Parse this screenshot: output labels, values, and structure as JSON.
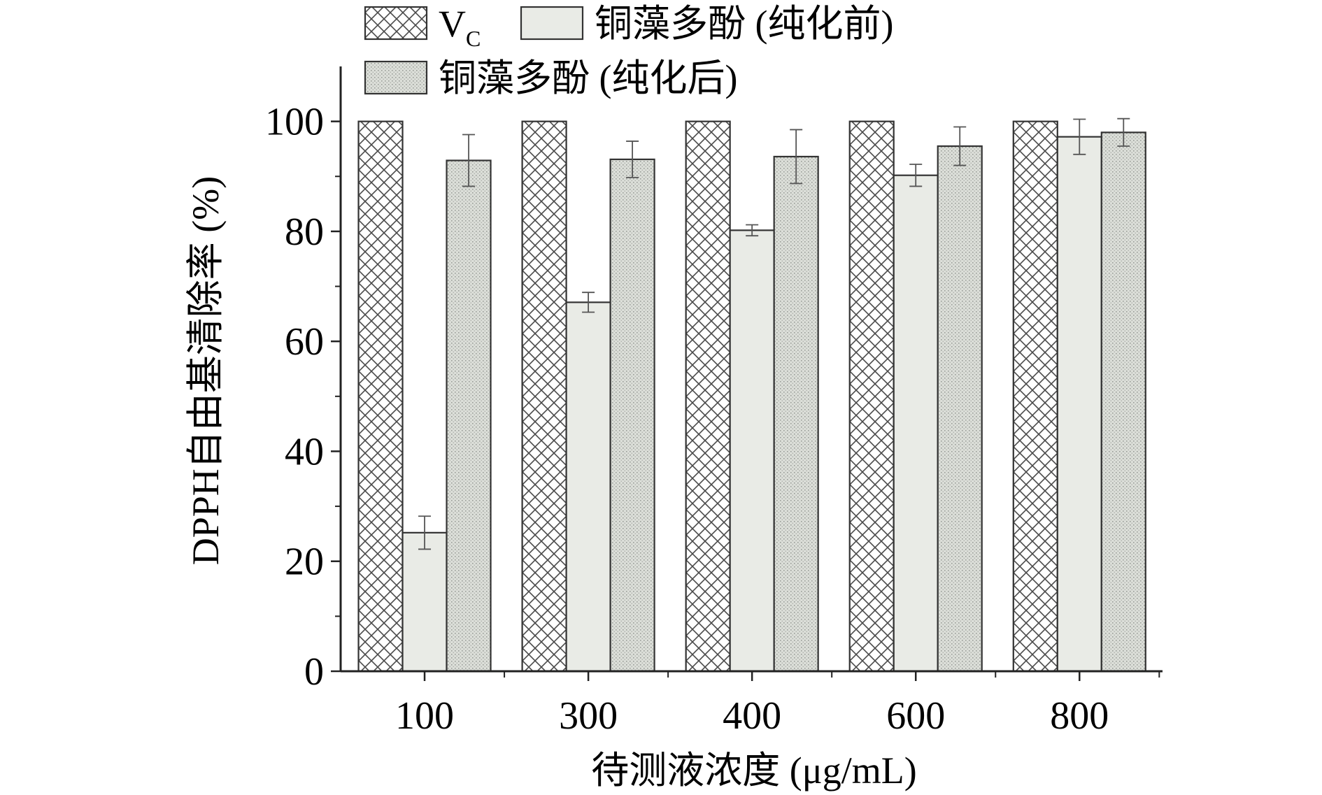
{
  "chart_data": {
    "type": "bar",
    "xlabel": "待测液浓度 (μg/mL)",
    "ylabel": "DPPH自由基清除率 (%)",
    "ylim": [
      0,
      110
    ],
    "yticks": [
      0,
      20,
      40,
      60,
      80,
      100
    ],
    "categories": [
      "100",
      "300",
      "400",
      "600",
      "800"
    ],
    "grid": false,
    "legend_position": "top",
    "series": [
      {
        "name": "VC",
        "name_main": "V",
        "name_sub": "C",
        "pattern": "crosshatch",
        "values": [
          100,
          100,
          100,
          100,
          100
        ],
        "errors": [
          0,
          0,
          0,
          0,
          0
        ]
      },
      {
        "name": "铜藻多酚 (纯化前)",
        "pattern": "light",
        "values": [
          25.2,
          67.1,
          80.2,
          90.2,
          97.2
        ],
        "errors": [
          3.0,
          1.8,
          1.0,
          2.0,
          3.2
        ]
      },
      {
        "name": "铜藻多酚 (纯化后)",
        "pattern": "dotted",
        "values": [
          92.9,
          93.1,
          93.6,
          95.5,
          98.0
        ],
        "errors": [
          4.7,
          3.3,
          4.9,
          3.5,
          2.5
        ]
      }
    ],
    "colors": {
      "bar_fill_light": "#e9ebe6",
      "bar_fill_dotted": "#d4d7d1",
      "bar_stroke": "#333333"
    }
  }
}
